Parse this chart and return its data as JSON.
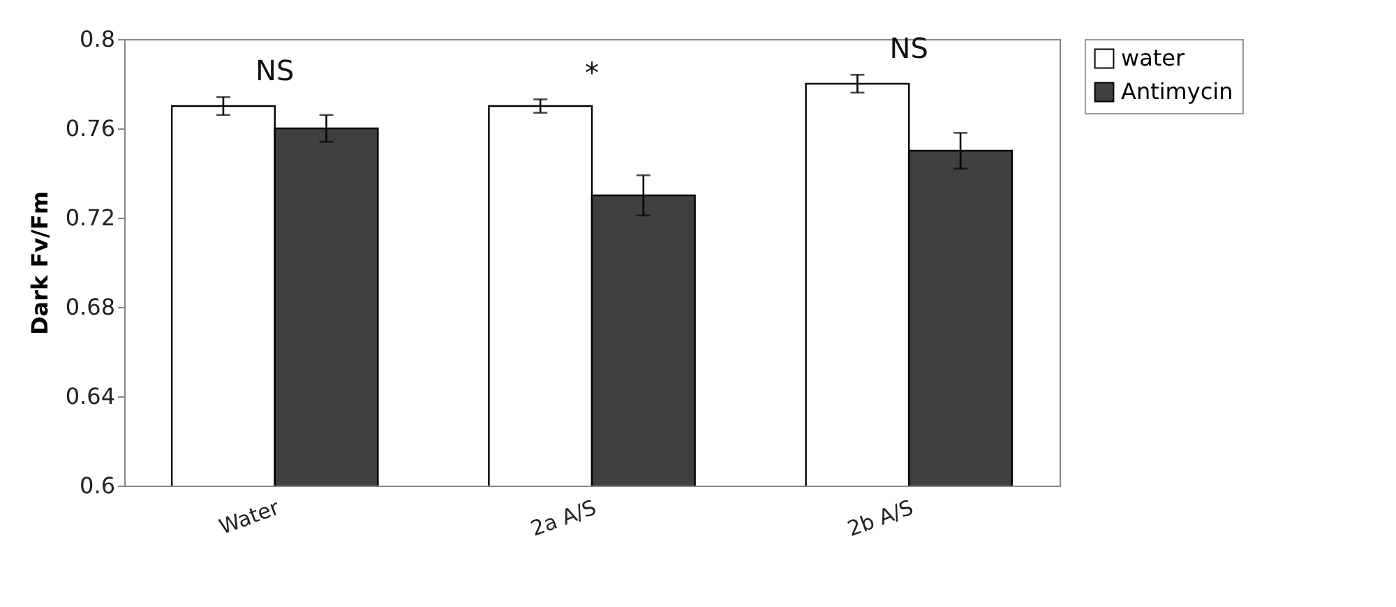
{
  "chart_data": {
    "type": "bar",
    "ylabel": "Dark Fv/Fm",
    "categories": [
      "Water",
      "2a A/S",
      "2b A/S"
    ],
    "series": [
      {
        "name": "water",
        "color": "#ffffff",
        "values": [
          0.77,
          0.77,
          0.78
        ],
        "errors": [
          0.004,
          0.003,
          0.004
        ]
      },
      {
        "name": "Antimycin",
        "color": "#404040",
        "values": [
          0.76,
          0.73,
          0.75
        ],
        "errors": [
          0.006,
          0.009,
          0.008
        ]
      }
    ],
    "ylim": [
      0.6,
      0.8
    ],
    "yticks": [
      0.6,
      0.64,
      0.68,
      0.72,
      0.76,
      0.8
    ],
    "grid": false,
    "legend": "right",
    "annotations": [
      "NS",
      "*",
      "NS"
    ]
  }
}
